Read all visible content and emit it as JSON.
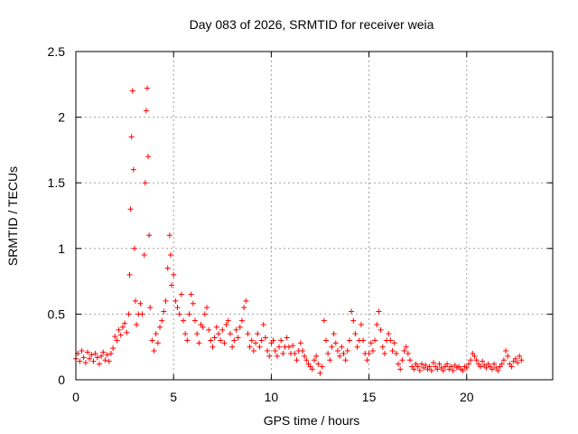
{
  "chart_data": {
    "type": "scatter",
    "title": "Day 083 of 2026, SRMTID for receiver weia",
    "xlabel": "GPS time / hours",
    "ylabel": "SRMTID / TECUs",
    "xlim": [
      0,
      24.4
    ],
    "ylim": [
      0,
      2.5
    ],
    "xticks": [
      0,
      5,
      10,
      15,
      20
    ],
    "xtick_labels": [
      "0",
      "5",
      "10",
      "15",
      "20"
    ],
    "yticks": [
      0,
      0.5,
      1,
      1.5,
      2,
      2.5
    ],
    "ytick_labels": [
      "0",
      "0.5",
      "1",
      "1.5",
      "2",
      "2.5"
    ],
    "grid": true,
    "marker": "+",
    "series": [
      {
        "name": "SRMTID",
        "color": "#ff0000",
        "points": [
          [
            0.0,
            0.16
          ],
          [
            0.1,
            0.2
          ],
          [
            0.2,
            0.14
          ],
          [
            0.3,
            0.22
          ],
          [
            0.4,
            0.17
          ],
          [
            0.5,
            0.13
          ],
          [
            0.6,
            0.21
          ],
          [
            0.7,
            0.16
          ],
          [
            0.8,
            0.19
          ],
          [
            0.9,
            0.14
          ],
          [
            1.0,
            0.2
          ],
          [
            1.1,
            0.17
          ],
          [
            1.2,
            0.12
          ],
          [
            1.3,
            0.18
          ],
          [
            1.4,
            0.21
          ],
          [
            1.5,
            0.15
          ],
          [
            1.6,
            0.19
          ],
          [
            1.7,
            0.14
          ],
          [
            1.8,
            0.2
          ],
          [
            1.9,
            0.24
          ],
          [
            2.0,
            0.33
          ],
          [
            2.1,
            0.3
          ],
          [
            2.2,
            0.38
          ],
          [
            2.3,
            0.34
          ],
          [
            2.4,
            0.4
          ],
          [
            2.5,
            0.43
          ],
          [
            2.6,
            0.36
          ],
          [
            2.7,
            0.5
          ],
          [
            2.75,
            0.8
          ],
          [
            2.8,
            1.3
          ],
          [
            2.85,
            1.85
          ],
          [
            2.9,
            2.2
          ],
          [
            2.95,
            1.6
          ],
          [
            3.0,
            1.0
          ],
          [
            3.05,
            0.6
          ],
          [
            3.1,
            0.42
          ],
          [
            3.2,
            0.5
          ],
          [
            3.3,
            0.58
          ],
          [
            3.4,
            0.5
          ],
          [
            3.5,
            0.95
          ],
          [
            3.55,
            1.5
          ],
          [
            3.6,
            2.05
          ],
          [
            3.65,
            2.22
          ],
          [
            3.7,
            1.7
          ],
          [
            3.75,
            1.1
          ],
          [
            3.8,
            0.55
          ],
          [
            3.9,
            0.3
          ],
          [
            4.0,
            0.22
          ],
          [
            4.1,
            0.35
          ],
          [
            4.2,
            0.28
          ],
          [
            4.3,
            0.4
          ],
          [
            4.4,
            0.45
          ],
          [
            4.5,
            0.52
          ],
          [
            4.6,
            0.6
          ],
          [
            4.7,
            0.85
          ],
          [
            4.8,
            1.1
          ],
          [
            4.85,
            0.95
          ],
          [
            4.9,
            0.72
          ],
          [
            5.0,
            0.8
          ],
          [
            5.1,
            0.6
          ],
          [
            5.2,
            0.55
          ],
          [
            5.3,
            0.5
          ],
          [
            5.4,
            0.65
          ],
          [
            5.5,
            0.45
          ],
          [
            5.6,
            0.35
          ],
          [
            5.7,
            0.3
          ],
          [
            5.8,
            0.5
          ],
          [
            5.9,
            0.65
          ],
          [
            6.0,
            0.58
          ],
          [
            6.1,
            0.45
          ],
          [
            6.2,
            0.35
          ],
          [
            6.3,
            0.28
          ],
          [
            6.4,
            0.42
          ],
          [
            6.5,
            0.4
          ],
          [
            6.6,
            0.5
          ],
          [
            6.7,
            0.55
          ],
          [
            6.8,
            0.38
          ],
          [
            6.9,
            0.3
          ],
          [
            7.0,
            0.25
          ],
          [
            7.1,
            0.32
          ],
          [
            7.2,
            0.4
          ],
          [
            7.3,
            0.35
          ],
          [
            7.4,
            0.3
          ],
          [
            7.5,
            0.38
          ],
          [
            7.6,
            0.28
          ],
          [
            7.7,
            0.42
          ],
          [
            7.8,
            0.45
          ],
          [
            7.9,
            0.35
          ],
          [
            8.0,
            0.25
          ],
          [
            8.1,
            0.3
          ],
          [
            8.2,
            0.38
          ],
          [
            8.3,
            0.32
          ],
          [
            8.4,
            0.4
          ],
          [
            8.5,
            0.45
          ],
          [
            8.6,
            0.55
          ],
          [
            8.7,
            0.6
          ],
          [
            8.8,
            0.35
          ],
          [
            8.9,
            0.25
          ],
          [
            9.0,
            0.3
          ],
          [
            9.1,
            0.22
          ],
          [
            9.2,
            0.28
          ],
          [
            9.3,
            0.35
          ],
          [
            9.4,
            0.25
          ],
          [
            9.5,
            0.3
          ],
          [
            9.6,
            0.42
          ],
          [
            9.7,
            0.32
          ],
          [
            9.8,
            0.22
          ],
          [
            9.9,
            0.18
          ],
          [
            10.0,
            0.28
          ],
          [
            10.1,
            0.3
          ],
          [
            10.2,
            0.22
          ],
          [
            10.3,
            0.18
          ],
          [
            10.4,
            0.25
          ],
          [
            10.5,
            0.3
          ],
          [
            10.6,
            0.2
          ],
          [
            10.7,
            0.25
          ],
          [
            10.8,
            0.32
          ],
          [
            10.9,
            0.25
          ],
          [
            11.0,
            0.2
          ],
          [
            11.1,
            0.26
          ],
          [
            11.2,
            0.2
          ],
          [
            11.3,
            0.15
          ],
          [
            11.4,
            0.22
          ],
          [
            11.5,
            0.28
          ],
          [
            11.6,
            0.22
          ],
          [
            11.7,
            0.18
          ],
          [
            11.8,
            0.15
          ],
          [
            11.9,
            0.12
          ],
          [
            12.0,
            0.1
          ],
          [
            12.1,
            0.08
          ],
          [
            12.2,
            0.15
          ],
          [
            12.3,
            0.18
          ],
          [
            12.4,
            0.12
          ],
          [
            12.5,
            0.05
          ],
          [
            12.6,
            0.1
          ],
          [
            12.7,
            0.45
          ],
          [
            12.8,
            0.3
          ],
          [
            12.9,
            0.2
          ],
          [
            13.0,
            0.15
          ],
          [
            13.1,
            0.25
          ],
          [
            13.2,
            0.35
          ],
          [
            13.3,
            0.28
          ],
          [
            13.4,
            0.22
          ],
          [
            13.5,
            0.18
          ],
          [
            13.6,
            0.25
          ],
          [
            13.7,
            0.2
          ],
          [
            13.8,
            0.15
          ],
          [
            13.9,
            0.22
          ],
          [
            14.0,
            0.3
          ],
          [
            14.1,
            0.52
          ],
          [
            14.2,
            0.45
          ],
          [
            14.3,
            0.35
          ],
          [
            14.4,
            0.25
          ],
          [
            14.5,
            0.3
          ],
          [
            14.6,
            0.42
          ],
          [
            14.7,
            0.3
          ],
          [
            14.8,
            0.2
          ],
          [
            14.9,
            0.15
          ],
          [
            15.0,
            0.2
          ],
          [
            15.1,
            0.28
          ],
          [
            15.2,
            0.22
          ],
          [
            15.3,
            0.3
          ],
          [
            15.4,
            0.42
          ],
          [
            15.5,
            0.52
          ],
          [
            15.6,
            0.38
          ],
          [
            15.7,
            0.25
          ],
          [
            15.8,
            0.2
          ],
          [
            15.9,
            0.3
          ],
          [
            16.0,
            0.35
          ],
          [
            16.1,
            0.3
          ],
          [
            16.2,
            0.22
          ],
          [
            16.3,
            0.28
          ],
          [
            16.4,
            0.2
          ],
          [
            16.5,
            0.12
          ],
          [
            16.6,
            0.08
          ],
          [
            16.7,
            0.15
          ],
          [
            16.8,
            0.22
          ],
          [
            16.9,
            0.25
          ],
          [
            17.0,
            0.2
          ],
          [
            17.1,
            0.15
          ],
          [
            17.2,
            0.1
          ],
          [
            17.3,
            0.08
          ],
          [
            17.4,
            0.12
          ],
          [
            17.5,
            0.1
          ],
          [
            17.6,
            0.07
          ],
          [
            17.7,
            0.12
          ],
          [
            17.8,
            0.09
          ],
          [
            17.9,
            0.11
          ],
          [
            18.0,
            0.08
          ],
          [
            18.1,
            0.1
          ],
          [
            18.2,
            0.07
          ],
          [
            18.3,
            0.13
          ],
          [
            18.4,
            0.1
          ],
          [
            18.5,
            0.08
          ],
          [
            18.6,
            0.12
          ],
          [
            18.7,
            0.09
          ],
          [
            18.8,
            0.07
          ],
          [
            18.9,
            0.1
          ],
          [
            19.0,
            0.12
          ],
          [
            19.1,
            0.08
          ],
          [
            19.2,
            0.1
          ],
          [
            19.3,
            0.07
          ],
          [
            19.4,
            0.11
          ],
          [
            19.5,
            0.09
          ],
          [
            19.6,
            0.1
          ],
          [
            19.7,
            0.08
          ],
          [
            19.8,
            0.07
          ],
          [
            19.9,
            0.1
          ],
          [
            20.0,
            0.09
          ],
          [
            20.1,
            0.12
          ],
          [
            20.2,
            0.15
          ],
          [
            20.3,
            0.2
          ],
          [
            20.4,
            0.18
          ],
          [
            20.5,
            0.15
          ],
          [
            20.6,
            0.12
          ],
          [
            20.7,
            0.1
          ],
          [
            20.8,
            0.14
          ],
          [
            20.9,
            0.11
          ],
          [
            21.0,
            0.09
          ],
          [
            21.1,
            0.12
          ],
          [
            21.2,
            0.1
          ],
          [
            21.3,
            0.08
          ],
          [
            21.4,
            0.12
          ],
          [
            21.5,
            0.09
          ],
          [
            21.6,
            0.07
          ],
          [
            21.7,
            0.1
          ],
          [
            21.8,
            0.12
          ],
          [
            21.9,
            0.15
          ],
          [
            22.0,
            0.22
          ],
          [
            22.1,
            0.18
          ],
          [
            22.2,
            0.12
          ],
          [
            22.3,
            0.1
          ],
          [
            22.4,
            0.14
          ],
          [
            22.5,
            0.16
          ],
          [
            22.6,
            0.13
          ],
          [
            22.7,
            0.18
          ],
          [
            22.8,
            0.15
          ]
        ]
      }
    ]
  }
}
